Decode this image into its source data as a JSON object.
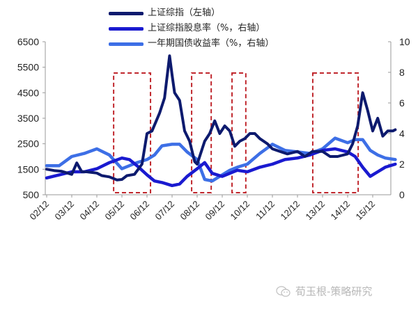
{
  "legend": {
    "items": [
      {
        "label": "上证综指（左轴）",
        "color": "#0d1a6e"
      },
      {
        "label": "上证综指股息率（%，右轴）",
        "color": "#1a1ad0"
      },
      {
        "label": "一年期国债收益率（%，右轴）",
        "color": "#3d6fe6"
      }
    ]
  },
  "watermark": {
    "text": "荀玉根-策略研究"
  },
  "chart_data": {
    "type": "line",
    "title": "",
    "xlabel": "",
    "ylabel_left": "上证综指",
    "ylabel_right": "%",
    "categories": [
      "02/12",
      "03/12",
      "04/12",
      "05/12",
      "06/12",
      "07/12",
      "08/12",
      "09/12",
      "10/12",
      "11/12",
      "12/12",
      "13/12",
      "14/12",
      "15/12"
    ],
    "left_axis": {
      "min": 500,
      "max": 6500,
      "ticks": [
        500,
        1500,
        2500,
        3500,
        4500,
        5500,
        6500
      ]
    },
    "right_axis": {
      "min": 0,
      "max": 10,
      "ticks": [
        0,
        2,
        4,
        6,
        8,
        10
      ]
    },
    "series": [
      {
        "name": "上证综指（左轴）",
        "axis": "left",
        "color": "#0d1a6e",
        "x": [
          0,
          0.3,
          0.6,
          1.0,
          1.2,
          1.4,
          1.6,
          2.0,
          2.2,
          2.5,
          2.8,
          3.0,
          3.2,
          3.5,
          3.8,
          4.0,
          4.2,
          4.5,
          4.7,
          4.9,
          5.0,
          5.1,
          5.3,
          5.5,
          5.7,
          5.9,
          6.0,
          6.2,
          6.3,
          6.5,
          6.7,
          6.9,
          7.1,
          7.3,
          7.5,
          7.7,
          7.9,
          8.1,
          8.3,
          8.5,
          8.8,
          9.0,
          9.3,
          9.6,
          10.0,
          10.3,
          10.6,
          11.0,
          11.3,
          11.6,
          12.0,
          12.2,
          12.4,
          12.6,
          12.8,
          13.0,
          13.2,
          13.4,
          13.6,
          13.8,
          13.9
        ],
        "values": [
          1500,
          1450,
          1420,
          1300,
          1750,
          1400,
          1400,
          1350,
          1250,
          1200,
          1080,
          1100,
          1250,
          1300,
          1700,
          2900,
          3000,
          3700,
          4300,
          5950,
          5200,
          4500,
          4200,
          3000,
          2600,
          1800,
          1700,
          2300,
          2600,
          2900,
          3400,
          2900,
          3200,
          3000,
          2400,
          2600,
          2700,
          2900,
          2900,
          2700,
          2500,
          2300,
          2200,
          2100,
          2200,
          2000,
          2200,
          2200,
          2000,
          2000,
          2100,
          2500,
          3200,
          4500,
          3800,
          3000,
          3500,
          2800,
          3000,
          3000,
          3050
        ]
      },
      {
        "name": "上证综指股息率（%，右轴）",
        "axis": "right",
        "color": "#1a1ad0",
        "x": [
          0,
          0.5,
          1.0,
          1.5,
          2.0,
          2.5,
          3.0,
          3.3,
          3.6,
          4.0,
          4.3,
          4.6,
          5.0,
          5.3,
          5.6,
          6.0,
          6.3,
          6.6,
          7.0,
          7.3,
          7.6,
          8.0,
          8.5,
          9.0,
          9.5,
          10.0,
          10.5,
          11.0,
          11.5,
          12.0,
          12.3,
          12.6,
          12.9,
          13.2,
          13.5,
          13.9
        ],
        "values": [
          1.1,
          1.3,
          1.5,
          1.5,
          1.7,
          2.1,
          2.4,
          2.3,
          1.9,
          1.3,
          0.9,
          0.8,
          0.6,
          0.7,
          1.2,
          1.7,
          2.1,
          1.4,
          1.2,
          1.4,
          1.6,
          1.5,
          1.8,
          2.0,
          2.3,
          2.4,
          2.6,
          2.9,
          3.0,
          2.8,
          2.5,
          1.8,
          1.2,
          1.5,
          1.8,
          2.0
        ]
      },
      {
        "name": "一年期国债收益率（%，右轴）",
        "axis": "right",
        "color": "#3d6fe6",
        "x": [
          0,
          0.5,
          1.0,
          1.5,
          2.0,
          2.5,
          3.0,
          3.3,
          3.6,
          4.0,
          4.3,
          4.6,
          5.0,
          5.3,
          5.6,
          6.0,
          6.3,
          6.6,
          7.0,
          7.3,
          7.6,
          8.0,
          8.5,
          9.0,
          9.5,
          10.0,
          10.5,
          11.0,
          11.5,
          12.0,
          12.3,
          12.6,
          12.9,
          13.2,
          13.5,
          13.9
        ],
        "values": [
          1.9,
          1.9,
          2.5,
          2.7,
          3.0,
          2.6,
          1.7,
          1.9,
          2.1,
          2.3,
          2.6,
          3.2,
          3.3,
          3.3,
          2.8,
          2.3,
          1.0,
          0.9,
          1.3,
          1.6,
          1.8,
          2.0,
          2.7,
          3.3,
          2.9,
          2.8,
          2.7,
          3.0,
          3.7,
          3.4,
          3.6,
          3.6,
          2.9,
          2.6,
          2.4,
          2.3
        ]
      }
    ],
    "highlight_boxes": [
      {
        "x0": 2.67,
        "x1": 4.14,
        "color": "#c0272d"
      },
      {
        "x0": 5.78,
        "x1": 6.56,
        "color": "#c0272d"
      },
      {
        "x0": 7.39,
        "x1": 7.94,
        "color": "#c0272d"
      },
      {
        "x0": 10.61,
        "x1": 12.42,
        "color": "#c0272d"
      }
    ],
    "grid": false,
    "legend_position": "top"
  }
}
